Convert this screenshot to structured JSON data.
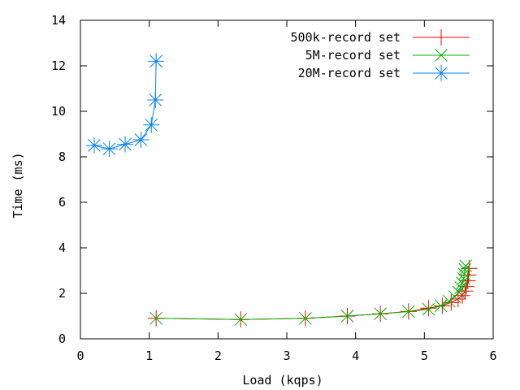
{
  "chart_data": {
    "type": "line",
    "title": "",
    "xlabel": "Load (kqps)",
    "ylabel": "Time (ms)",
    "xlim": [
      0,
      6
    ],
    "ylim": [
      0,
      14
    ],
    "xticks": [
      0,
      1,
      2,
      3,
      4,
      5,
      6
    ],
    "yticks": [
      0,
      2,
      4,
      6,
      8,
      10,
      12,
      14
    ],
    "grid": false,
    "legend_position": "top-right",
    "series": [
      {
        "name": "500k-record set",
        "color": "#ff0000",
        "marker": "plus",
        "x": [
          1.1,
          2.33,
          3.27,
          3.88,
          4.36,
          4.77,
          5.06,
          5.26,
          5.39,
          5.49,
          5.55,
          5.59,
          5.61,
          5.63,
          5.64,
          5.65
        ],
        "y": [
          0.9,
          0.85,
          0.9,
          1.0,
          1.1,
          1.2,
          1.35,
          1.45,
          1.6,
          1.75,
          1.9,
          2.1,
          2.3,
          2.55,
          2.8,
          3.1
        ]
      },
      {
        "name": "5M-record set",
        "color": "#00b000",
        "marker": "x",
        "x": [
          1.1,
          2.33,
          3.27,
          3.88,
          4.36,
          4.77,
          5.06,
          5.24,
          5.36,
          5.44,
          5.5,
          5.53,
          5.55,
          5.57,
          5.58,
          5.59,
          5.6
        ],
        "y": [
          0.9,
          0.85,
          0.9,
          1.0,
          1.1,
          1.2,
          1.3,
          1.45,
          1.65,
          1.85,
          2.05,
          2.25,
          2.45,
          2.65,
          2.85,
          3.05,
          3.2
        ]
      },
      {
        "name": "20M-record set",
        "color": "#0080ff",
        "marker": "star",
        "x": [
          0.2,
          0.42,
          0.65,
          0.88,
          1.03,
          1.09,
          1.1
        ],
        "y": [
          8.5,
          8.35,
          8.55,
          8.75,
          9.4,
          10.5,
          12.2
        ]
      }
    ]
  }
}
